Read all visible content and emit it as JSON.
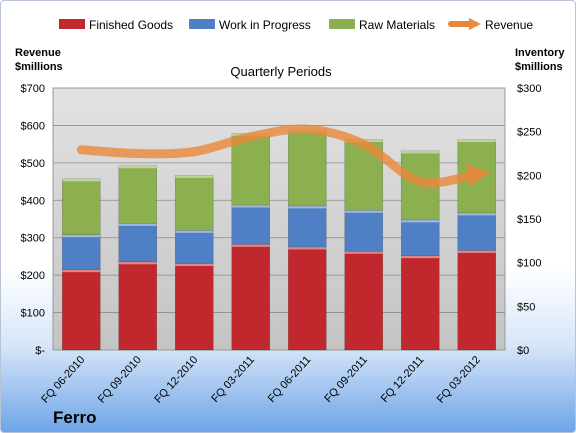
{
  "chart_data": {
    "type": "bar",
    "stacked": true,
    "title": "Quarterly Periods",
    "company": "Ferro",
    "categories": [
      "FQ 06-2010",
      "FQ 09-2010",
      "FQ 12-2010",
      "FQ 03-2011",
      "FQ 06-2011",
      "FQ 09-2011",
      "FQ 12-2011",
      "FQ 03-2012"
    ],
    "left_axis": {
      "label_line1": "Revenue",
      "label_line2": "$millions",
      "min": 0,
      "max": 700,
      "step": 100,
      "ticks": [
        "$-",
        "$100",
        "$200",
        "$300",
        "$400",
        "$500",
        "$600",
        "$700"
      ]
    },
    "right_axis": {
      "label_line1": "Inventory",
      "label_line2": "$millions",
      "min": 0,
      "max": 300,
      "step": 50,
      "ticks": [
        "$0",
        "$50",
        "$100",
        "$150",
        "$200",
        "$250",
        "$300"
      ]
    },
    "series": [
      {
        "name": "Finished Goods",
        "color": "#c0282d",
        "axis": "right",
        "values": [
          92,
          101,
          99,
          121,
          118,
          113,
          108,
          114
        ]
      },
      {
        "name": "Work in Progress",
        "color": "#4f7fc4",
        "axis": "right",
        "values": [
          40,
          44,
          38,
          45,
          47,
          47,
          41,
          43
        ]
      },
      {
        "name": "Raw Materials",
        "color": "#8cb050",
        "axis": "right",
        "values": [
          64,
          66,
          63,
          82,
          88,
          81,
          79,
          84
        ]
      }
    ],
    "line_series": {
      "name": "Revenue",
      "color": "#e8883a",
      "axis": "left",
      "values": [
        535,
        525,
        530,
        570,
        590,
        550,
        450,
        470
      ]
    },
    "grid": true,
    "legend_position": "top"
  }
}
